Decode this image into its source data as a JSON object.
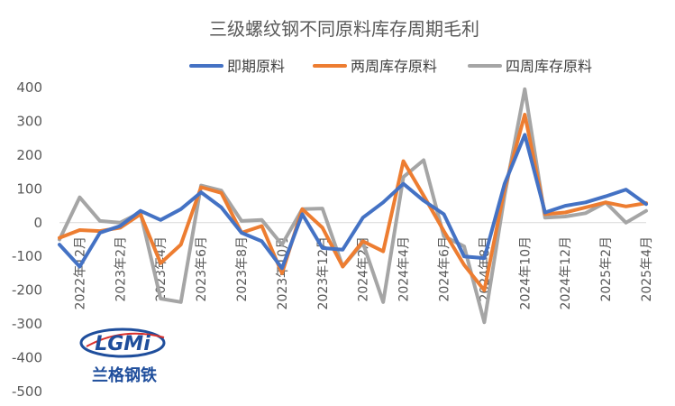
{
  "chart_data": {
    "type": "line",
    "title": "三级螺纹钢不同原料库存周期毛利",
    "ylim": [
      -500,
      400
    ],
    "yticks": [
      400,
      300,
      200,
      100,
      0,
      -100,
      -200,
      -300,
      -400,
      -500
    ],
    "x_tick_labels": [
      "2022年12月",
      "2023年2月",
      "2023年4月",
      "2023年6月",
      "2023年8月",
      "2023年10月",
      "2023年12月",
      "2024年2月",
      "2024年4月",
      "2024年6月",
      "2024年8月",
      "2024年10月",
      "2024年12月",
      "2025年2月",
      "2025年4月"
    ],
    "x": [
      "2022-11",
      "2022-12",
      "2023-01",
      "2023-02",
      "2023-03",
      "2023-04",
      "2023-05",
      "2023-06",
      "2023-07",
      "2023-08",
      "2023-09",
      "2023-10",
      "2023-11",
      "2023-12",
      "2024-01",
      "2024-02",
      "2024-03",
      "2024-04",
      "2024-05",
      "2024-06",
      "2024-07",
      "2024-08",
      "2024-09",
      "2024-10",
      "2024-11",
      "2024-12",
      "2025-01",
      "2025-02",
      "2025-03",
      "2025-04"
    ],
    "series": [
      {
        "name": "即期原料",
        "color": "#4472C4",
        "values": [
          -65,
          -130,
          -30,
          -10,
          35,
          8,
          40,
          90,
          45,
          -30,
          -55,
          -135,
          25,
          -75,
          -80,
          15,
          60,
          115,
          65,
          25,
          -100,
          -105,
          115,
          260,
          30,
          50,
          60,
          78,
          98,
          55
        ]
      },
      {
        "name": "两周库存原料",
        "color": "#ED7D31",
        "values": [
          -45,
          -22,
          -25,
          -15,
          25,
          -120,
          -65,
          105,
          88,
          -30,
          -10,
          -150,
          40,
          -15,
          -130,
          -55,
          -85,
          182,
          80,
          -25,
          -125,
          -200,
          100,
          320,
          25,
          30,
          45,
          60,
          48,
          58
        ]
      },
      {
        "name": "四周库存原料",
        "color": "#A5A5A5",
        "values": [
          -50,
          75,
          5,
          0,
          30,
          -225,
          -235,
          110,
          95,
          5,
          8,
          -65,
          40,
          42,
          -130,
          -60,
          -235,
          135,
          185,
          -40,
          -70,
          -295,
          80,
          395,
          15,
          18,
          28,
          60,
          0,
          35
        ]
      }
    ],
    "legend_position": "top",
    "grid": false
  }
}
